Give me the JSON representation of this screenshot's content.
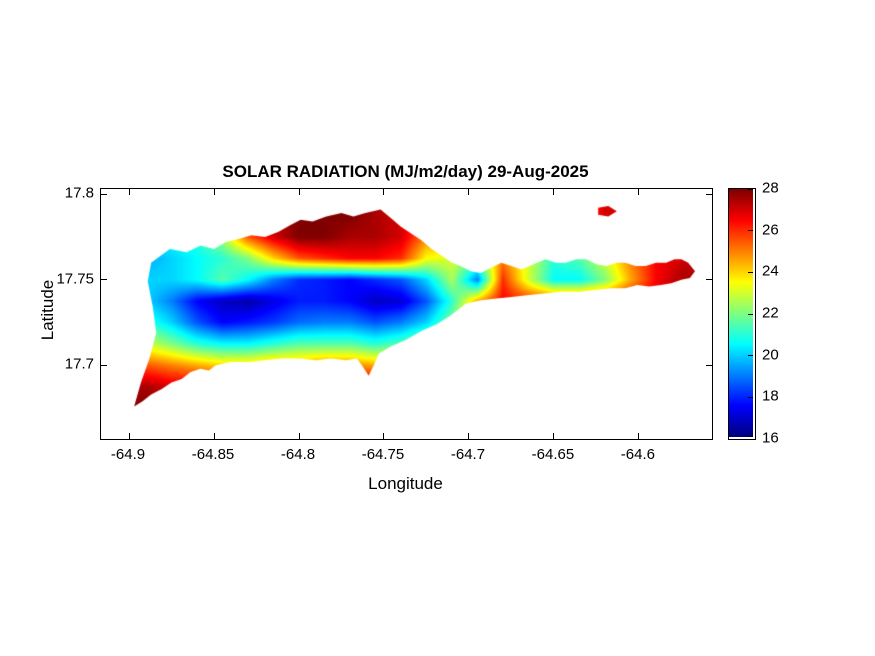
{
  "chart_data": {
    "type": "heatmap",
    "title": "SOLAR RADIATION (MJ/m2/day) 29-Aug-2025",
    "date": "29-Aug-2025",
    "units": "MJ/m2/day",
    "xlabel": "Longitude",
    "ylabel": "Latitude",
    "colormap": "jet",
    "color_range": [
      16,
      28
    ],
    "colorbar_ticks": [
      16,
      18,
      20,
      22,
      24,
      26,
      28
    ],
    "colorbar_tick_labels": [
      "16",
      "18",
      "20",
      "22",
      "24",
      "26",
      "28"
    ],
    "xlim": [
      -64.9165,
      -64.557
    ],
    "ylim": [
      17.657,
      17.803
    ],
    "xticks": [
      -64.9,
      -64.85,
      -64.8,
      -64.75,
      -64.7,
      -64.65,
      -64.6
    ],
    "xtick_labels": [
      "-64.9",
      "-64.85",
      "-64.8",
      "-64.75",
      "-64.7",
      "-64.65",
      "-64.6"
    ],
    "yticks": [
      17.7,
      17.75,
      17.8
    ],
    "ytick_labels": [
      "17.7",
      "17.75",
      "17.8"
    ],
    "grid": {
      "lon_start": -64.92,
      "lon_step": 0.015,
      "lat_start": 17.8,
      "lat_step": 0.0125,
      "values": [
        [
          21,
          21,
          21,
          21.5,
          22.5,
          24,
          26,
          27,
          27.5,
          28,
          28,
          27.5,
          27,
          26,
          25.5,
          26,
          26,
          25.5,
          25,
          25.5,
          27,
          27,
          27,
          27,
          27,
          27
        ],
        [
          20.5,
          20.5,
          20.5,
          21,
          22,
          23.5,
          26,
          27.5,
          28,
          28,
          28,
          27.5,
          27,
          25.5,
          25,
          25.5,
          26,
          25.5,
          24.5,
          25,
          27,
          27,
          27,
          27,
          27,
          27
        ],
        [
          20,
          20,
          20,
          20.5,
          21,
          22.5,
          25.5,
          27,
          28,
          28,
          27.5,
          27.5,
          27,
          25,
          24.5,
          25,
          25.5,
          25,
          22.5,
          22.5,
          24.5,
          26,
          26.5,
          27,
          27,
          27
        ],
        [
          19.5,
          19.5,
          19.5,
          20,
          20.5,
          21,
          22,
          24,
          25.5,
          26,
          26.5,
          26.5,
          26,
          23.5,
          23,
          22,
          25,
          23,
          21,
          21.5,
          23,
          25,
          26.5,
          27,
          27.5,
          27.5
        ],
        [
          19.5,
          19.5,
          20,
          20,
          20.5,
          21.5,
          20.5,
          19,
          18,
          17.8,
          17.5,
          18,
          18.5,
          20,
          22.5,
          19,
          26,
          23,
          20.5,
          20.5,
          22,
          24.5,
          26.5,
          27.5,
          27.5,
          27.5
        ],
        [
          20,
          20,
          20,
          19,
          17.5,
          16.8,
          16.5,
          17.2,
          17.8,
          17.8,
          17.5,
          16.8,
          17,
          18.5,
          21,
          24.5,
          26.5,
          26,
          26,
          26,
          26,
          26.5,
          27,
          27.5,
          27.5,
          27.5
        ],
        [
          21.5,
          21.5,
          21,
          20,
          18.5,
          17.5,
          17.8,
          18.2,
          18.8,
          19,
          19,
          18.5,
          19,
          20,
          22,
          25.5,
          26.5,
          26.5,
          26.5,
          26.5,
          27,
          27,
          27.5,
          27.5,
          27.5,
          27.5
        ],
        [
          23.5,
          23.5,
          23,
          22,
          21,
          20.5,
          20.5,
          21,
          21.5,
          21.5,
          21.5,
          21,
          21.5,
          22.5,
          24.5,
          26.5,
          27.5,
          27.5,
          27.5,
          27.5,
          28,
          28,
          28,
          28,
          28,
          28
        ],
        [
          26,
          26,
          25.5,
          25,
          24.5,
          24,
          24,
          24.5,
          24.5,
          25,
          25,
          24.5,
          25,
          26,
          27,
          27.5,
          28,
          28,
          28,
          28,
          28,
          28,
          28,
          28,
          28,
          28
        ],
        [
          27.5,
          27.5,
          27.5,
          27,
          27,
          27,
          27,
          27.5,
          27.5,
          27.5,
          27.5,
          27.5,
          27.5,
          27.5,
          28,
          28,
          28,
          28,
          28,
          28,
          28,
          28,
          28,
          28,
          28,
          28
        ],
        [
          28,
          28,
          28,
          27.5,
          27.5,
          27.5,
          27.5,
          28,
          28,
          28,
          28,
          28,
          28,
          28,
          28,
          28,
          28,
          28,
          28,
          28,
          28,
          28,
          28,
          28,
          28,
          28
        ],
        [
          28,
          28,
          28,
          28,
          28,
          28,
          28,
          28,
          28,
          28,
          28,
          28,
          28,
          28,
          28,
          28,
          28,
          28,
          28,
          28,
          28,
          28,
          28,
          28,
          28,
          28
        ]
      ]
    },
    "island_outline": [
      [
        -64.897,
        17.676
      ],
      [
        -64.893,
        17.69
      ],
      [
        -64.888,
        17.704
      ],
      [
        -64.884,
        17.719
      ],
      [
        -64.886,
        17.734
      ],
      [
        -64.889,
        17.749
      ],
      [
        -64.887,
        17.76
      ],
      [
        -64.876,
        17.768
      ],
      [
        -64.866,
        17.766
      ],
      [
        -64.858,
        17.77
      ],
      [
        -64.85,
        17.768
      ],
      [
        -64.843,
        17.772
      ],
      [
        -64.835,
        17.774
      ],
      [
        -64.828,
        17.776
      ],
      [
        -64.82,
        17.775
      ],
      [
        -64.812,
        17.778
      ],
      [
        -64.805,
        17.782
      ],
      [
        -64.799,
        17.785
      ],
      [
        -64.792,
        17.784
      ],
      [
        -64.784,
        17.787
      ],
      [
        -64.775,
        17.789
      ],
      [
        -64.768,
        17.787
      ],
      [
        -64.761,
        17.789
      ],
      [
        -64.752,
        17.791
      ],
      [
        -64.746,
        17.786
      ],
      [
        -64.74,
        17.781
      ],
      [
        -64.734,
        17.777
      ],
      [
        -64.728,
        17.773
      ],
      [
        -64.722,
        17.768
      ],
      [
        -64.716,
        17.764
      ],
      [
        -64.71,
        17.76
      ],
      [
        -64.705,
        17.758
      ],
      [
        -64.699,
        17.755
      ],
      [
        -64.693,
        17.754
      ],
      [
        -64.687,
        17.757
      ],
      [
        -64.681,
        17.76
      ],
      [
        -64.675,
        17.758
      ],
      [
        -64.669,
        17.756
      ],
      [
        -64.662,
        17.759
      ],
      [
        -64.655,
        17.762
      ],
      [
        -64.649,
        17.76
      ],
      [
        -64.643,
        17.76
      ],
      [
        -64.637,
        17.762
      ],
      [
        -64.631,
        17.762
      ],
      [
        -64.625,
        17.759
      ],
      [
        -64.619,
        17.758
      ],
      [
        -64.613,
        17.76
      ],
      [
        -64.608,
        17.76
      ],
      [
        -64.602,
        17.758
      ],
      [
        -64.596,
        17.758
      ],
      [
        -64.59,
        17.76
      ],
      [
        -64.584,
        17.76
      ],
      [
        -64.579,
        17.762
      ],
      [
        -64.575,
        17.762
      ],
      [
        -64.571,
        17.76
      ],
      [
        -64.567,
        17.755
      ],
      [
        -64.57,
        17.751
      ],
      [
        -64.575,
        17.75
      ],
      [
        -64.581,
        17.748
      ],
      [
        -64.587,
        17.747
      ],
      [
        -64.594,
        17.746
      ],
      [
        -64.601,
        17.747
      ],
      [
        -64.608,
        17.745
      ],
      [
        -64.617,
        17.745
      ],
      [
        -64.626,
        17.744
      ],
      [
        -64.635,
        17.743
      ],
      [
        -64.646,
        17.743
      ],
      [
        -64.656,
        17.742
      ],
      [
        -64.666,
        17.741
      ],
      [
        -64.675,
        17.74
      ],
      [
        -64.684,
        17.739
      ],
      [
        -64.693,
        17.738
      ],
      [
        -64.702,
        17.736
      ],
      [
        -64.711,
        17.729
      ],
      [
        -64.719,
        17.724
      ],
      [
        -64.728,
        17.72
      ],
      [
        -64.737,
        17.715
      ],
      [
        -64.746,
        17.711
      ],
      [
        -64.753,
        17.707
      ],
      [
        -64.756,
        17.7
      ],
      [
        -64.759,
        17.694
      ],
      [
        -64.763,
        17.7
      ],
      [
        -64.766,
        17.704
      ],
      [
        -64.772,
        17.703
      ],
      [
        -64.781,
        17.704
      ],
      [
        -64.79,
        17.703
      ],
      [
        -64.799,
        17.704
      ],
      [
        -64.81,
        17.704
      ],
      [
        -64.82,
        17.703
      ],
      [
        -64.83,
        17.702
      ],
      [
        -64.84,
        17.702
      ],
      [
        -64.849,
        17.7
      ],
      [
        -64.853,
        17.697
      ],
      [
        -64.858,
        17.698
      ],
      [
        -64.864,
        17.696
      ],
      [
        -64.869,
        17.692
      ],
      [
        -64.875,
        17.69
      ],
      [
        -64.881,
        17.686
      ],
      [
        -64.887,
        17.683
      ],
      [
        -64.892,
        17.679
      ]
    ],
    "islet_outline": [
      [
        -64.624,
        17.792
      ],
      [
        -64.618,
        17.793
      ],
      [
        -64.613,
        17.79
      ],
      [
        -64.618,
        17.787
      ],
      [
        -64.624,
        17.788
      ]
    ]
  }
}
